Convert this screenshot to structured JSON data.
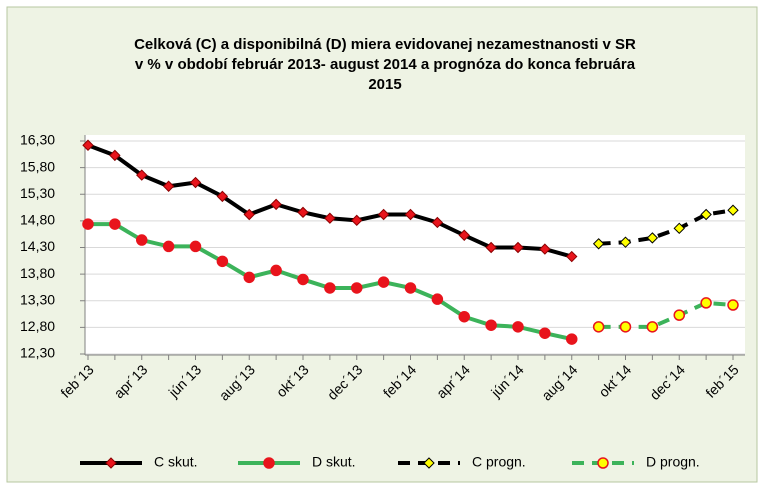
{
  "chart_data": {
    "type": "line",
    "title": [
      "Celková (C) a disponibilná (D) miera evidovanej nezamestnanosti v SR",
      "v % v období február 2013- august 2014 a prognóza do konca februára",
      "2015"
    ],
    "categories": [
      "feb´13",
      null,
      "apr´13",
      null,
      "jún´13",
      null,
      "aug´13",
      null,
      "okt´13",
      null,
      "dec´13",
      null,
      "feb´14",
      null,
      "apr´14",
      null,
      "jún´14",
      null,
      "aug´14",
      null,
      "okt´14",
      null,
      "dec´14",
      null,
      "feb´15"
    ],
    "ylim": [
      12.3,
      16.3
    ],
    "yticks": [
      {
        "value": 12.3,
        "label": "12,30"
      },
      {
        "value": 12.8,
        "label": "12,80"
      },
      {
        "value": 13.3,
        "label": "13,30"
      },
      {
        "value": 13.8,
        "label": "13,80"
      },
      {
        "value": 14.3,
        "label": "14,30"
      },
      {
        "value": 14.8,
        "label": "14,80"
      },
      {
        "value": 15.3,
        "label": "15,30"
      },
      {
        "value": 15.8,
        "label": "15,80"
      },
      {
        "value": 16.3,
        "label": "16,30"
      }
    ],
    "grid": true,
    "legend": "bottom",
    "series": [
      {
        "name": "C skut.",
        "color": "#000000",
        "marker": "diamond",
        "marker_color": "#e8141c",
        "dashed": false,
        "values": [
          16.22,
          16.03,
          15.66,
          15.45,
          15.52,
          15.26,
          14.92,
          15.11,
          14.96,
          14.85,
          14.81,
          14.92,
          14.92,
          14.77,
          14.53,
          14.3,
          14.3,
          14.27,
          14.13,
          null,
          null,
          null,
          null,
          null,
          null
        ]
      },
      {
        "name": "D skut.",
        "color": "#3cb35a",
        "marker": "circle",
        "marker_color": "#e8141c",
        "dashed": false,
        "values": [
          14.74,
          14.74,
          14.44,
          14.32,
          14.32,
          14.04,
          13.74,
          13.87,
          13.7,
          13.54,
          13.54,
          13.65,
          13.54,
          13.33,
          13.0,
          12.84,
          12.81,
          12.69,
          12.58,
          null,
          null,
          null,
          null,
          null,
          null
        ]
      },
      {
        "name": "C progn.",
        "color": "#000000",
        "marker": "diamond",
        "marker_color": "#ffff00",
        "dashed": true,
        "values": [
          null,
          null,
          null,
          null,
          null,
          null,
          null,
          null,
          null,
          null,
          null,
          null,
          null,
          null,
          null,
          null,
          null,
          null,
          null,
          14.37,
          14.4,
          14.48,
          14.66,
          14.92,
          15.0
        ]
      },
      {
        "name": "D progn.",
        "color": "#3cb35a",
        "marker": "circle",
        "marker_color": "#ffff00",
        "dashed": true,
        "values": [
          null,
          null,
          null,
          null,
          null,
          null,
          null,
          null,
          null,
          null,
          null,
          null,
          null,
          null,
          null,
          null,
          null,
          null,
          null,
          12.81,
          12.81,
          12.81,
          13.03,
          13.26,
          13.22
        ]
      }
    ]
  }
}
